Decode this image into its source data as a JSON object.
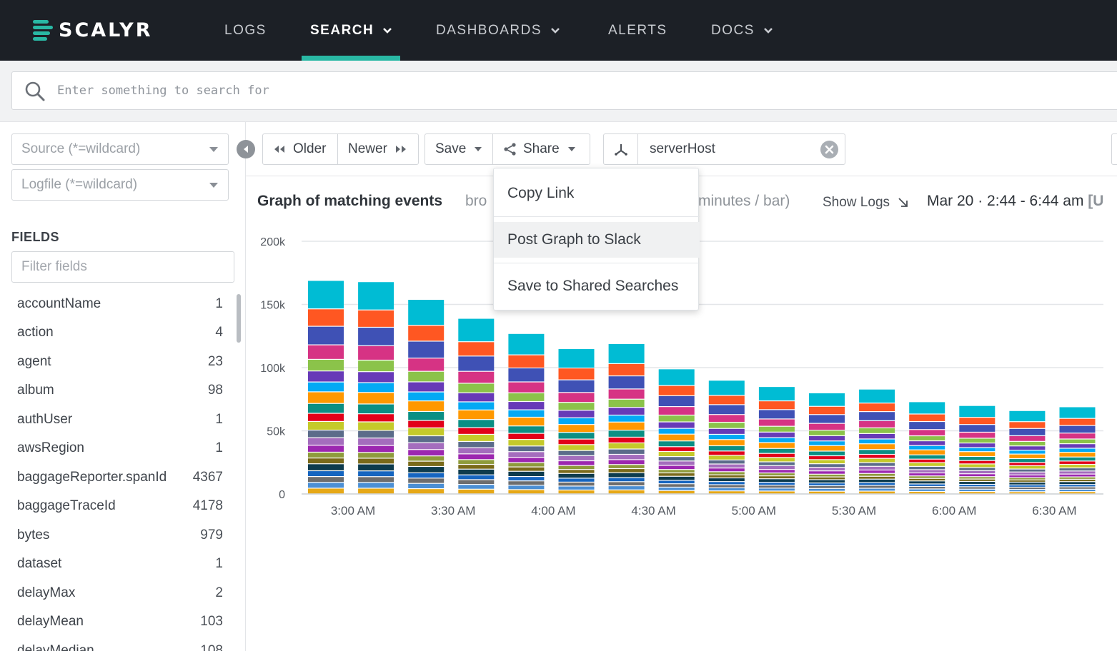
{
  "app": {
    "logo_text": "SCALYR"
  },
  "nav": {
    "items": [
      {
        "label": "LOGS",
        "has_menu": false,
        "active": false
      },
      {
        "label": "SEARCH",
        "has_menu": true,
        "active": true
      },
      {
        "label": "DASHBOARDS",
        "has_menu": true,
        "active": false
      },
      {
        "label": "ALERTS",
        "has_menu": false,
        "active": false
      },
      {
        "label": "DOCS",
        "has_menu": true,
        "active": false
      }
    ],
    "accent_color": "#29b8a4"
  },
  "search": {
    "placeholder": "Enter something to search for",
    "value": ""
  },
  "sidebar": {
    "source_placeholder": "Source (*=wildcard)",
    "logfile_placeholder": "Logfile (*=wildcard)",
    "fields_heading": "FIELDS",
    "filter_placeholder": "Filter fields",
    "fields": [
      {
        "name": "accountName",
        "count": "1"
      },
      {
        "name": "action",
        "count": "4"
      },
      {
        "name": "agent",
        "count": "23"
      },
      {
        "name": "album",
        "count": "98"
      },
      {
        "name": "authUser",
        "count": "1"
      },
      {
        "name": "awsRegion",
        "count": "1"
      },
      {
        "name": "baggageReporter.spanId",
        "count": "4367"
      },
      {
        "name": "baggageTraceId",
        "count": "4178"
      },
      {
        "name": "bytes",
        "count": "979"
      },
      {
        "name": "dataset",
        "count": "1"
      },
      {
        "name": "delayMax",
        "count": "2"
      },
      {
        "name": "delayMean",
        "count": "103"
      },
      {
        "name": "delayMedian",
        "count": "108"
      }
    ]
  },
  "toolbar": {
    "older_label": "Older",
    "newer_label": "Newer",
    "save_label": "Save",
    "share_label": "Share",
    "breakdown_value": "serverHost"
  },
  "graph_header": {
    "title": "Graph of matching events",
    "subtitle_left": "bro",
    "subtitle_right": "minutes / bar)",
    "show_logs_label": "Show Logs",
    "time_range": "Mar 20 · 2:44 - 6:44 am",
    "time_suffix": "[U"
  },
  "share_menu": {
    "items": [
      "Copy Link",
      "Post Graph to Slack",
      "Save to Shared Searches"
    ],
    "hovered_index": 1
  },
  "chart_data": {
    "type": "bar",
    "stacked": true,
    "y_ticks": [
      "200k",
      "150k",
      "100k",
      "50k",
      "0"
    ],
    "x_ticks": [
      "3:00 AM",
      "3:30 AM",
      "4:00 AM",
      "4:30 AM",
      "5:00 AM",
      "5:30 AM",
      "6:00 AM",
      "6:30 AM"
    ],
    "ylim": [
      0,
      200000
    ],
    "totals": [
      169000,
      168000,
      154000,
      139000,
      127000,
      115000,
      119000,
      99000,
      90000,
      85000,
      80000,
      83000,
      73000,
      70000,
      66000,
      69000
    ],
    "segment_colors": [
      "#e6a817",
      "#4b8fd4",
      "#6d6d6d",
      "#1565c0",
      "#0d3b4d",
      "#7a6a1a",
      "#8e9b3c",
      "#9c27b0",
      "#a46dbd",
      "#5b6c8a",
      "#c5ca2a",
      "#e2001a",
      "#0b8f84",
      "#ff9800",
      "#03a9f4",
      "#673ab7",
      "#8bc34a",
      "#d63384",
      "#3f51b5",
      "#ff5722",
      "#00bcd4"
    ],
    "segment_weights": [
      1,
      1,
      1,
      1,
      1.2,
      1,
      1,
      1.2,
      1.3,
      1.3,
      1.5,
      1.4,
      1.7,
      2,
      1.7,
      1.9,
      2,
      2.5,
      3.2,
      3,
      4.9
    ],
    "grid": true,
    "legend": "none"
  }
}
